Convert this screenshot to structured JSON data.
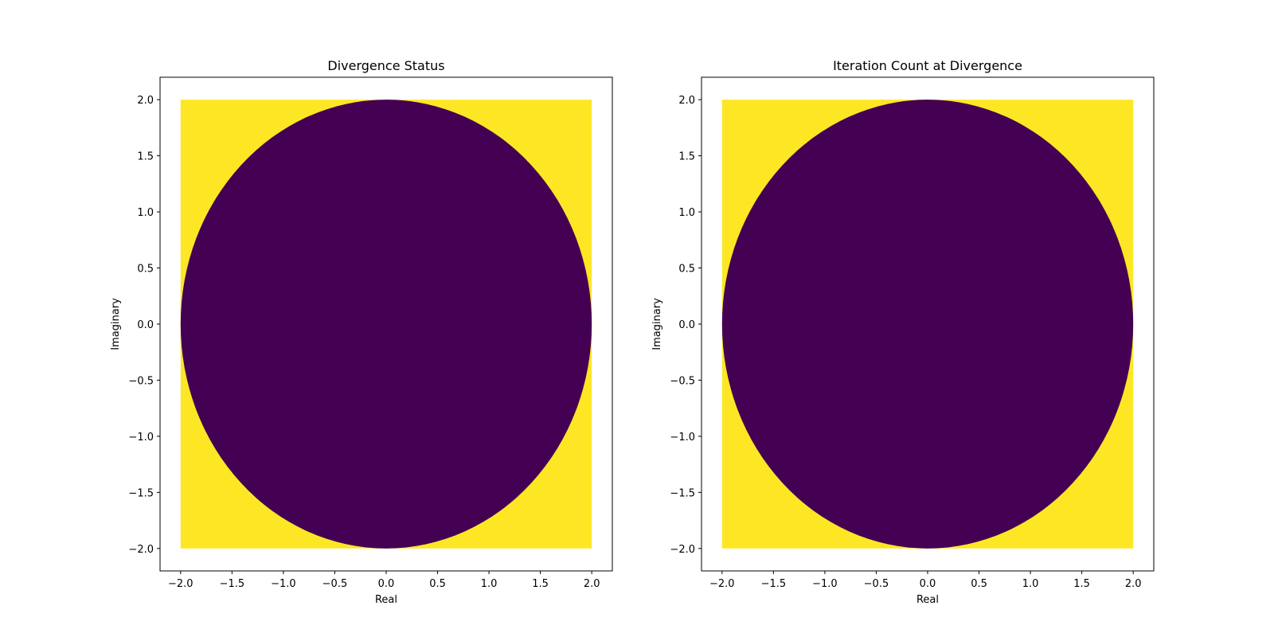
{
  "chart_data": [
    {
      "type": "heatmap",
      "title": "Divergence Status",
      "xlabel": "Real",
      "ylabel": "Imaginary",
      "xlim": [
        -2.2,
        2.2
      ],
      "ylim": [
        -2.2,
        2.2
      ],
      "xticks": [
        -2.0,
        -1.5,
        -1.0,
        -0.5,
        0.0,
        0.5,
        1.0,
        1.5,
        2.0
      ],
      "yticks": [
        -2.0,
        -1.5,
        -1.0,
        -0.5,
        0.0,
        0.5,
        1.0,
        1.5,
        2.0
      ],
      "xtick_labels": [
        "−2.0",
        "−1.5",
        "−1.0",
        "−0.5",
        "0.0",
        "0.5",
        "1.0",
        "1.5",
        "2.0"
      ],
      "ytick_labels": [
        "−2.0",
        "−1.5",
        "−1.0",
        "−0.5",
        "0.0",
        "0.5",
        "1.0",
        "1.5",
        "2.0"
      ],
      "grid": false,
      "region": {
        "x": [
          -2.0,
          2.0
        ],
        "y": [
          -2.0,
          2.0
        ]
      },
      "inner_region": {
        "shape": "disk",
        "center": [
          0.0,
          0.0
        ],
        "radius": 2.0,
        "color": "#440154"
      },
      "outer_color": "#fde725"
    },
    {
      "type": "heatmap",
      "title": "Iteration Count at Divergence",
      "xlabel": "Real",
      "ylabel": "Imaginary",
      "xlim": [
        -2.2,
        2.2
      ],
      "ylim": [
        -2.2,
        2.2
      ],
      "xticks": [
        -2.0,
        -1.5,
        -1.0,
        -0.5,
        0.0,
        0.5,
        1.0,
        1.5,
        2.0
      ],
      "yticks": [
        -2.0,
        -1.5,
        -1.0,
        -0.5,
        0.0,
        0.5,
        1.0,
        1.5,
        2.0
      ],
      "xtick_labels": [
        "−2.0",
        "−1.5",
        "−1.0",
        "−0.5",
        "0.0",
        "0.5",
        "1.0",
        "1.5",
        "2.0"
      ],
      "ytick_labels": [
        "−2.0",
        "−1.5",
        "−1.0",
        "−0.5",
        "0.0",
        "0.5",
        "1.0",
        "1.5",
        "2.0"
      ],
      "grid": false,
      "region": {
        "x": [
          -2.0,
          2.0
        ],
        "y": [
          -2.0,
          2.0
        ]
      },
      "inner_region": {
        "shape": "disk",
        "center": [
          0.0,
          0.0
        ],
        "radius": 2.0,
        "color": "#440154"
      },
      "outer_color": "#fde725"
    }
  ]
}
